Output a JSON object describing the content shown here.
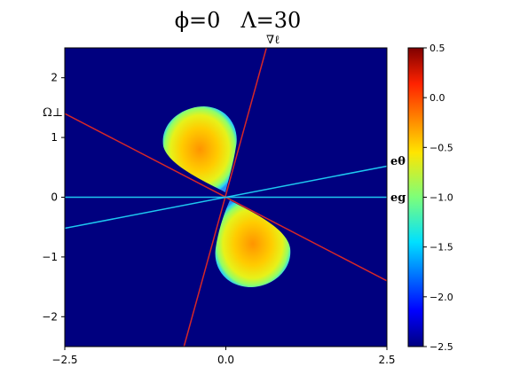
{
  "chart_data": {
    "type": "heatmap",
    "title": "ϕ=0   Λ=30",
    "xlabel": "",
    "ylabel": "",
    "xlim": [
      -2.5,
      2.5
    ],
    "ylim": [
      -2.5,
      2.5
    ],
    "x_ticks": [
      -2.5,
      0.0,
      2.5
    ],
    "x_tick_labels": [
      "−2.5",
      "0.0",
      "2.5"
    ],
    "y_ticks": [
      2,
      1,
      0,
      -1,
      -2
    ],
    "y_tick_labels": [
      "2",
      "1",
      "0",
      "−1",
      "−2"
    ],
    "grid": false,
    "colormap": "jet",
    "colorbar": {
      "range": [
        -2.5,
        0.5
      ],
      "ticks": [
        0.5,
        0.0,
        -0.5,
        -1.0,
        -1.5,
        -2.0,
        -2.5
      ],
      "tick_labels": [
        "0.5",
        "0.0",
        "−0.5",
        "−1.0",
        "−1.5",
        "−2.0",
        "−2.5"
      ]
    },
    "background_value": -2.5,
    "lobes": [
      {
        "center": [
          -0.4,
          0.75
        ],
        "rim_value": -1.8,
        "peak_value": -0.4
      },
      {
        "center": [
          0.4,
          -0.75
        ],
        "rim_value": -1.8,
        "peak_value": -0.4
      }
    ],
    "lines": [
      {
        "label": "∇ℓ",
        "color": "#d62728",
        "points": [
          [
            -0.65,
            -2.5
          ],
          [
            0.63,
            2.5
          ]
        ]
      },
      {
        "label": "Ω⊥",
        "color": "#d62728",
        "points": [
          [
            -2.5,
            1.4
          ],
          [
            2.5,
            -1.4
          ]
        ]
      },
      {
        "label": "eθ",
        "color": "#1ec8f0",
        "points": [
          [
            -2.5,
            -0.52
          ],
          [
            2.5,
            0.52
          ]
        ]
      },
      {
        "label": "eg",
        "color": "#1ec8f0",
        "points": [
          [
            -2.5,
            0.0
          ],
          [
            2.5,
            0.0
          ]
        ]
      }
    ]
  }
}
